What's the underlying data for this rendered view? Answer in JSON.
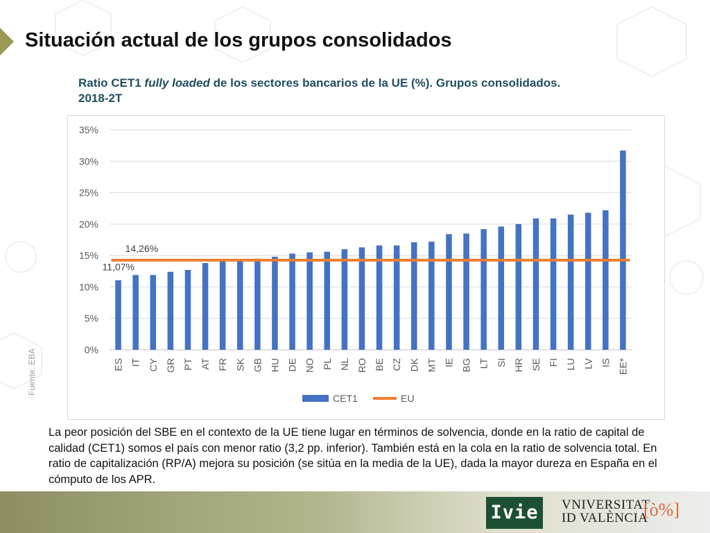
{
  "slide": {
    "title": "Situación actual de los grupos consolidados",
    "source": "Fuente: EBA",
    "body": "La peor posición del SBE en el contexto de la UE tiene lugar en términos de solvencia, donde en la ratio de capital de calidad (CET1) somos el país con menor ratio (3,2 pp. inferior). También está en la cola en la ratio de solvencia total. En ratio de capitalización (RP/A) mejora su posición (se sitúa en la media de la UE), dada la mayor dureza en España en el cómputo de los APR."
  },
  "chart_title": {
    "part1": "Ratio CET1 ",
    "emphasis": "fully loaded",
    "part2": " de los sectores bancarios de la UE (%). Grupos consolidados. 2018-2T"
  },
  "chart_data": {
    "type": "bar",
    "categories": [
      "ES",
      "IT",
      "CY",
      "GR",
      "PT",
      "AT",
      "FR",
      "SK",
      "GB",
      "HU",
      "DE",
      "NO",
      "PL",
      "NL",
      "RO",
      "BE",
      "CZ",
      "DK",
      "MT",
      "IE",
      "BG",
      "LT",
      "SI",
      "HR",
      "SE",
      "FI",
      "LU",
      "LV",
      "IS",
      "EE*"
    ],
    "series": [
      {
        "name": "CET1",
        "type": "bar",
        "color": "#4472c4",
        "values": [
          11.07,
          11.9,
          11.9,
          12.4,
          12.7,
          13.8,
          14.2,
          14.3,
          14.5,
          14.8,
          15.3,
          15.5,
          15.6,
          16.0,
          16.3,
          16.6,
          16.6,
          17.1,
          17.2,
          18.4,
          18.5,
          19.2,
          19.6,
          20.0,
          20.9,
          20.9,
          21.5,
          21.8,
          22.2,
          31.7
        ]
      },
      {
        "name": "EU",
        "type": "line",
        "color": "#ed7d31",
        "value": 14.26
      }
    ],
    "ylim": [
      0,
      35
    ],
    "yticks": [
      "0%",
      "5%",
      "10%",
      "15%",
      "20%",
      "25%",
      "30%",
      "35%"
    ],
    "ytick_values": [
      0,
      5,
      10,
      15,
      20,
      25,
      30,
      35
    ],
    "annotations": [
      {
        "text": "14,26%",
        "target": "EU"
      },
      {
        "text": "11,07%",
        "target": "ES"
      }
    ],
    "grid": true,
    "legend": "bottom"
  },
  "logos": {
    "ivie": "Ivie",
    "university_line1": "VNIVERSITAT",
    "university_line2": "ID VALÈNCIA",
    "seal": "[ò%]"
  },
  "colors": {
    "title_band": "#9a9a55",
    "chart_title": "#1f4e5f",
    "ivie_green": "#1d5033"
  }
}
